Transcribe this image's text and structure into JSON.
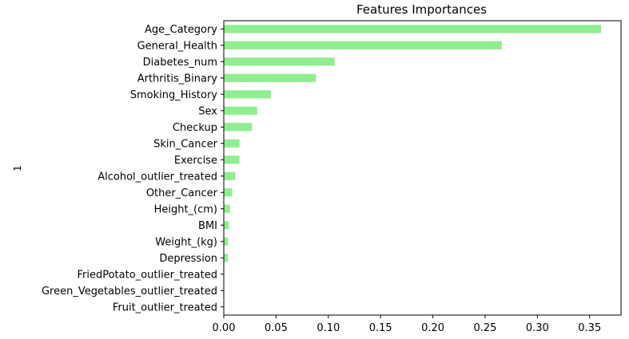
{
  "chart_data": {
    "type": "bar",
    "orientation": "horizontal",
    "title": "Features Importances",
    "ylabel": "1",
    "xlabel": "",
    "xlim": [
      0,
      0.38
    ],
    "xticks": [
      "0.00",
      "0.05",
      "0.10",
      "0.15",
      "0.20",
      "0.25",
      "0.30",
      "0.35"
    ],
    "bar_color": "#90ee90",
    "grid": false,
    "legend": "none",
    "categories": [
      "Age_Category",
      "General_Health",
      "Diabetes_num",
      "Arthritis_Binary",
      "Smoking_History",
      "Sex",
      "Checkup",
      "Skin_Cancer",
      "Exercise",
      "Alcohol_outlier_treated",
      "Other_Cancer",
      "Height_(cm)",
      "BMI",
      "Weight_(kg)",
      "Depression",
      "FriedPotato_outlier_treated",
      "Green_Vegetables_outlier_treated",
      "Fruit_outlier_treated"
    ],
    "values": [
      0.361,
      0.266,
      0.106,
      0.088,
      0.045,
      0.032,
      0.027,
      0.015,
      0.015,
      0.011,
      0.008,
      0.006,
      0.005,
      0.004,
      0.004,
      0.0,
      0.0,
      0.0
    ]
  }
}
